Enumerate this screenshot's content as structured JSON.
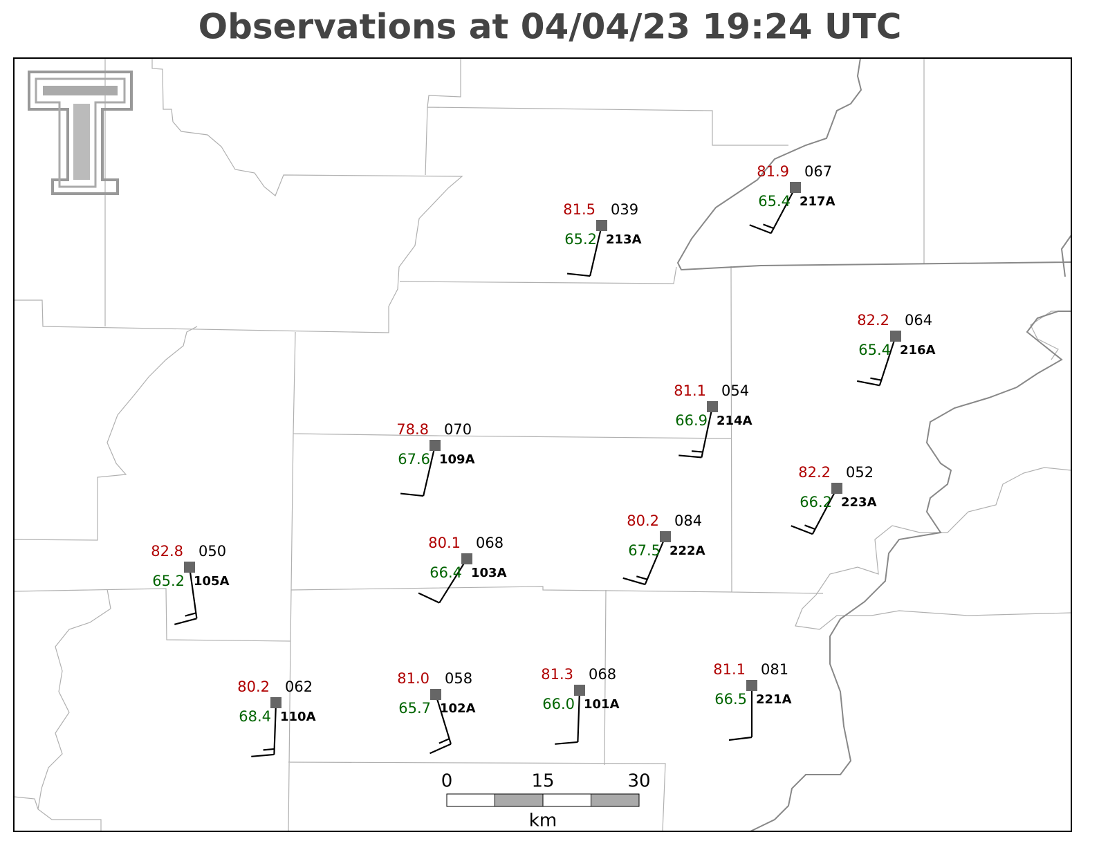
{
  "title": "Observations at 04/04/23 19:24 UTC",
  "stations": [
    {
      "id": "213A",
      "temperature": "81.5",
      "dewpoint": "65.2",
      "pressure": "039",
      "wind_direction": 193,
      "wind_speed": 10
    },
    {
      "id": "217A",
      "temperature": "81.9",
      "dewpoint": "65.4",
      "pressure": "067",
      "wind_direction": 208,
      "wind_speed": 15
    },
    {
      "id": "216A",
      "temperature": "82.2",
      "dewpoint": "65.4",
      "pressure": "064",
      "wind_direction": 198,
      "wind_speed": 15
    },
    {
      "id": "214A",
      "temperature": "81.1",
      "dewpoint": "66.9",
      "pressure": "054",
      "wind_direction": 192,
      "wind_speed": 15
    },
    {
      "id": "109A",
      "temperature": "78.8",
      "dewpoint": "67.6",
      "pressure": "070",
      "wind_direction": 193,
      "wind_speed": 10
    },
    {
      "id": "223A",
      "temperature": "82.2",
      "dewpoint": "66.2",
      "pressure": "052",
      "wind_direction": 208,
      "wind_speed": 15
    },
    {
      "id": "222A",
      "temperature": "80.2",
      "dewpoint": "67.5",
      "pressure": "084",
      "wind_direction": 203,
      "wind_speed": 15
    },
    {
      "id": "105A",
      "temperature": "82.8",
      "dewpoint": "65.2",
      "pressure": "050",
      "wind_direction": 172,
      "wind_speed": 15
    },
    {
      "id": "103A",
      "temperature": "80.1",
      "dewpoint": "66.4",
      "pressure": "068",
      "wind_direction": 212,
      "wind_speed": 10
    },
    {
      "id": "110A",
      "temperature": "80.2",
      "dewpoint": "68.4",
      "pressure": "062",
      "wind_direction": 182,
      "wind_speed": 15
    },
    {
      "id": "102A",
      "temperature": "81.0",
      "dewpoint": "65.7",
      "pressure": "058",
      "wind_direction": 163,
      "wind_speed": 15
    },
    {
      "id": "101A",
      "temperature": "81.3",
      "dewpoint": "66.0",
      "pressure": "068",
      "wind_direction": 182,
      "wind_speed": 10
    },
    {
      "id": "221A",
      "temperature": "81.1",
      "dewpoint": "66.5",
      "pressure": "081",
      "wind_direction": 180,
      "wind_speed": 10
    }
  ],
  "scale_bar": {
    "ticks": [
      "0",
      "15",
      "30"
    ],
    "unit": "km"
  }
}
